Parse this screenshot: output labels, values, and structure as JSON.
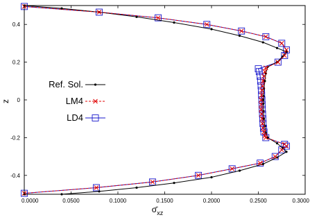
{
  "chart_data": {
    "type": "line",
    "xlabel": "σ̄xz",
    "xlabel_main": "σ̄",
    "xlabel_sub": "xz",
    "ylabel": "z",
    "xlim": [
      0.0,
      0.3
    ],
    "ylim": [
      -0.5,
      0.5
    ],
    "xticks": [
      0.0,
      0.05,
      0.1,
      0.15,
      0.2,
      0.25,
      0.3
    ],
    "xtick_labels": [
      "0.0000",
      "0.0500",
      "0.1000",
      "0.1500",
      "0.2000",
      "0.2500",
      "0.3000"
    ],
    "yticks": [
      -0.4,
      -0.2,
      0,
      0.2,
      0.4
    ],
    "ytick_labels": [
      "-0.4",
      "-0.2",
      "0",
      "0.2",
      "0.4"
    ],
    "legend_position": "left",
    "series": [
      {
        "name": "Ref. Sol.",
        "color": "#000000",
        "marker": "dot",
        "line": "solid",
        "x": [
          0.0,
          0.04,
          0.08,
          0.12,
          0.16,
          0.2,
          0.23,
          0.255,
          0.27,
          0.28,
          0.276,
          0.27,
          0.26,
          0.258,
          0.257,
          0.256,
          0.2555,
          0.2553,
          0.2553,
          0.2555,
          0.256,
          0.257,
          0.258,
          0.26,
          0.27,
          0.276,
          0.28,
          0.27,
          0.255,
          0.23,
          0.2,
          0.16,
          0.12,
          0.08,
          0.04,
          0.0
        ],
        "y": [
          0.5,
          0.485,
          0.465,
          0.44,
          0.41,
          0.375,
          0.34,
          0.305,
          0.275,
          0.255,
          0.23,
          0.2,
          0.175,
          0.14,
          0.1,
          0.06,
          0.02,
          0.0,
          -0.02,
          -0.06,
          -0.1,
          -0.14,
          -0.175,
          -0.2,
          -0.23,
          -0.255,
          -0.275,
          -0.305,
          -0.34,
          -0.375,
          -0.41,
          -0.44,
          -0.465,
          -0.485,
          -0.5,
          -0.5
        ]
      },
      {
        "name": "LM4",
        "color": "#e00000",
        "marker": "x",
        "line": "dashed",
        "x": [
          0.0,
          0.08,
          0.143,
          0.195,
          0.232,
          0.258,
          0.275,
          0.28,
          0.278,
          0.271,
          0.258,
          0.257,
          0.256,
          0.255,
          0.2545,
          0.254,
          0.2535,
          0.253,
          0.253,
          0.253,
          0.2535,
          0.254,
          0.2545,
          0.255,
          0.256,
          0.257,
          0.258,
          0.278,
          0.28,
          0.275,
          0.268,
          0.252,
          0.222,
          0.186,
          0.137,
          0.077,
          0.0
        ],
        "y": [
          0.495,
          0.465,
          0.435,
          0.4,
          0.365,
          0.335,
          0.3,
          0.265,
          0.235,
          0.2,
          0.17,
          0.15,
          0.125,
          0.1,
          0.075,
          0.05,
          0.025,
          0.0,
          -0.025,
          -0.05,
          -0.075,
          -0.1,
          -0.125,
          -0.15,
          -0.17,
          -0.19,
          -0.2,
          -0.235,
          -0.245,
          -0.265,
          -0.3,
          -0.335,
          -0.365,
          -0.4,
          -0.435,
          -0.465,
          -0.495
        ]
      },
      {
        "name": "LD4",
        "color": "#1a1acd",
        "marker": "square",
        "line": "solid",
        "x": [
          0.0,
          0.08,
          0.143,
          0.195,
          0.232,
          0.258,
          0.275,
          0.28,
          0.278,
          0.271,
          0.25,
          0.251,
          0.252,
          0.2525,
          0.253,
          0.2533,
          0.2535,
          0.2538,
          0.254,
          0.2542,
          0.2545,
          0.2548,
          0.255,
          0.2555,
          0.256,
          0.258,
          0.278,
          0.28,
          0.275,
          0.268,
          0.252,
          0.222,
          0.186,
          0.137,
          0.077,
          0.0
        ],
        "y": [
          0.495,
          0.465,
          0.435,
          0.4,
          0.365,
          0.335,
          0.3,
          0.265,
          0.235,
          0.2,
          0.165,
          0.15,
          0.125,
          0.1,
          0.075,
          0.05,
          0.025,
          0.0,
          -0.025,
          -0.05,
          -0.075,
          -0.1,
          -0.125,
          -0.15,
          -0.17,
          -0.2,
          -0.235,
          -0.245,
          -0.265,
          -0.3,
          -0.335,
          -0.365,
          -0.4,
          -0.435,
          -0.465,
          -0.495
        ]
      }
    ]
  }
}
